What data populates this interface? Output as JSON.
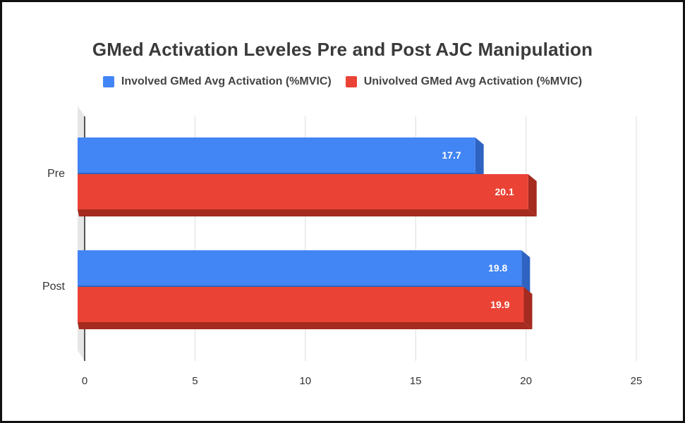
{
  "chart_data": {
    "type": "bar",
    "orientation": "horizontal",
    "title": "GMed Activation Leveles Pre and Post AJC Manipulation",
    "categories": [
      "Pre",
      "Post"
    ],
    "series": [
      {
        "name": "Involved GMed Avg Activation (%MVIC)",
        "values": [
          17.7,
          19.8
        ],
        "labels": [
          "17.7",
          "19.8"
        ],
        "color": "#4285f4",
        "shade": "#2f63c2"
      },
      {
        "name": "Univolved GMed Avg Activation (%MVIC)",
        "values": [
          20.1,
          19.9
        ],
        "labels": [
          "20.1",
          "19.9"
        ],
        "color": "#ea4335",
        "shade": "#a52a20"
      }
    ],
    "xlim": [
      0,
      25
    ],
    "xticks": [
      "0",
      "5",
      "10",
      "15",
      "20",
      "25"
    ],
    "xlabel": "",
    "ylabel": "",
    "grid": true,
    "legend": "top"
  }
}
